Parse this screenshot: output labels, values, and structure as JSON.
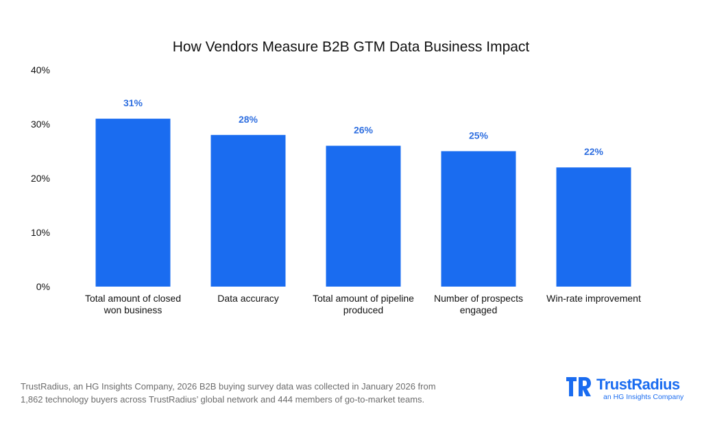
{
  "chart_data": {
    "type": "bar",
    "title": "How Vendors Measure B2B GTM Data Business Impact",
    "categories": [
      [
        "Total amount of closed",
        "won business"
      ],
      [
        "Data accuracy"
      ],
      [
        "Total amount of pipeline",
        "produced"
      ],
      [
        "Number of prospects",
        "engaged"
      ],
      [
        "Win-rate improvement"
      ]
    ],
    "values": [
      31,
      28,
      26,
      25,
      22
    ],
    "value_labels": [
      "31%",
      "28%",
      "26%",
      "25%",
      "22%"
    ],
    "ylim": [
      0,
      40
    ],
    "yticks": [
      0,
      10,
      20,
      30,
      40
    ],
    "ytick_labels": [
      "0%",
      "10%",
      "20%",
      "30%",
      "40%"
    ],
    "xlabel": "",
    "ylabel": "",
    "grid": false,
    "bar_color": "#1a6cf0",
    "label_color": "#2f6fe0"
  },
  "footer": {
    "line1": "TrustRadius, an HG Insights Company, 2026 B2B buying survey data was collected in January 2026 from",
    "line2": "1,862 technology buyers across TrustRadius’ global network and 444 members of go-to-market teams."
  },
  "brand": {
    "name": "TrustRadius",
    "tagline": "an HG Insights Company",
    "color": "#1a6cf0",
    "icon": "trustradius-logo-icon"
  }
}
